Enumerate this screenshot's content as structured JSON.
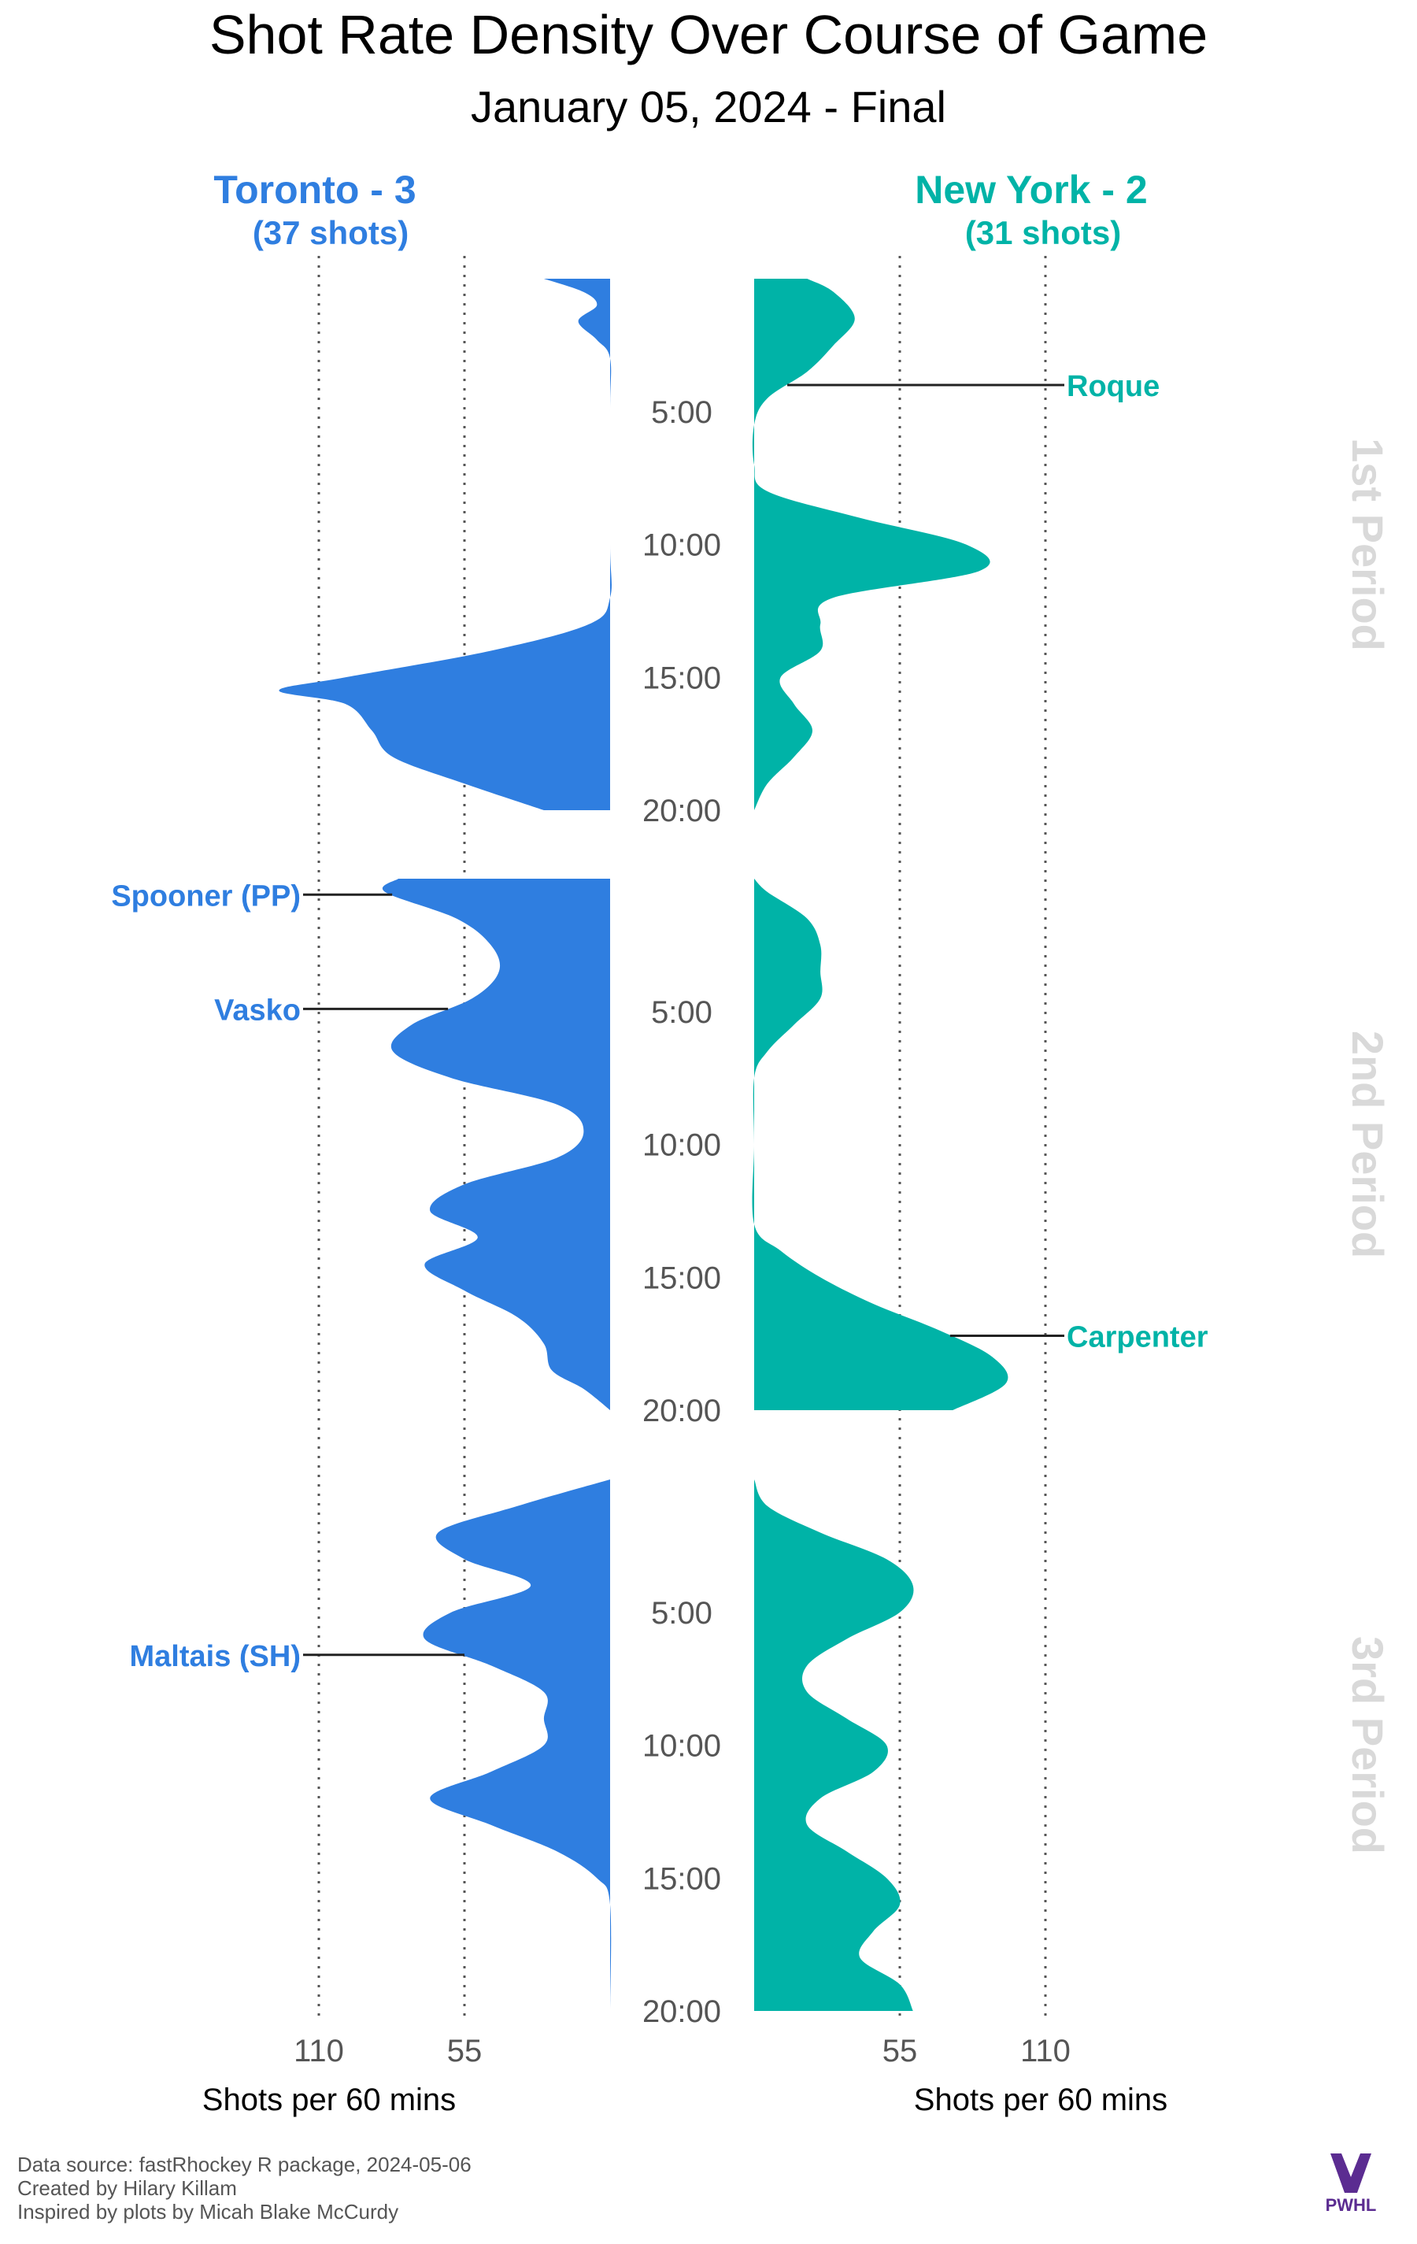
{
  "chart_data": {
    "type": "area",
    "title": "Shot Rate Density Over Course of Game",
    "subtitle": "January 05, 2024 - Final",
    "teams": [
      {
        "side": "left",
        "header": "Toronto - 3",
        "shots": "(37 shots)",
        "color": "#2f7ee0"
      },
      {
        "side": "right",
        "header": "New York - 2",
        "shots": "(31 shots)",
        "color": "#00b3a7"
      }
    ],
    "period_labels": [
      "1st Period",
      "2nd Period",
      "3rd Period"
    ],
    "time_ticks": [
      "5:00",
      "10:00",
      "15:00",
      "20:00"
    ],
    "time_tick_values": [
      5,
      10,
      15,
      20
    ],
    "x_ticks": {
      "left": [
        110,
        55
      ],
      "right": [
        55,
        110
      ]
    },
    "xlabel": "Shots per 60 mins",
    "xlim": [
      0,
      110
    ],
    "grid": "dotted at 55 and 110",
    "series": {
      "left": [
        [
          [
            0.0,
            25
          ],
          [
            0.5,
            10
          ],
          [
            1.0,
            5
          ],
          [
            1.6,
            12
          ],
          [
            2.3,
            5
          ],
          [
            3.0,
            0
          ],
          [
            5.0,
            0
          ],
          [
            10.0,
            0
          ],
          [
            12.0,
            0
          ],
          [
            13.0,
            8
          ],
          [
            14.0,
            45
          ],
          [
            15.0,
            100
          ],
          [
            15.5,
            125
          ],
          [
            16.0,
            100
          ],
          [
            17.0,
            90
          ],
          [
            18.0,
            82
          ],
          [
            19.0,
            55
          ],
          [
            20.0,
            25
          ]
        ],
        [
          [
            0.0,
            80
          ],
          [
            0.5,
            85
          ],
          [
            1.5,
            58
          ],
          [
            2.5,
            45
          ],
          [
            3.5,
            42
          ],
          [
            4.5,
            52
          ],
          [
            5.5,
            75
          ],
          [
            6.5,
            82
          ],
          [
            7.5,
            60
          ],
          [
            8.5,
            20
          ],
          [
            9.5,
            10
          ],
          [
            10.5,
            20
          ],
          [
            11.5,
            55
          ],
          [
            12.5,
            68
          ],
          [
            13.5,
            50
          ],
          [
            14.5,
            70
          ],
          [
            15.5,
            55
          ],
          [
            16.5,
            35
          ],
          [
            17.5,
            25
          ],
          [
            18.5,
            22
          ],
          [
            19.2,
            10
          ],
          [
            20.0,
            0
          ]
        ],
        [
          [
            0.0,
            0
          ],
          [
            1.0,
            35
          ],
          [
            2.0,
            65
          ],
          [
            3.0,
            55
          ],
          [
            4.0,
            30
          ],
          [
            5.0,
            60
          ],
          [
            6.0,
            70
          ],
          [
            7.0,
            45
          ],
          [
            8.0,
            25
          ],
          [
            9.0,
            25
          ],
          [
            10.0,
            25
          ],
          [
            11.0,
            45
          ],
          [
            12.0,
            68
          ],
          [
            13.0,
            45
          ],
          [
            14.0,
            20
          ],
          [
            15.0,
            5
          ],
          [
            16.0,
            0
          ],
          [
            20.0,
            0
          ]
        ]
      ],
      "right": [
        [
          [
            0.0,
            20
          ],
          [
            0.5,
            30
          ],
          [
            1.5,
            38
          ],
          [
            2.5,
            30
          ],
          [
            3.5,
            20
          ],
          [
            4.5,
            5
          ],
          [
            5.5,
            0
          ],
          [
            7.0,
            0
          ],
          [
            8.0,
            5
          ],
          [
            9.0,
            40
          ],
          [
            10.0,
            80
          ],
          [
            11.0,
            85
          ],
          [
            12.0,
            30
          ],
          [
            13.0,
            25
          ],
          [
            14.0,
            25
          ],
          [
            15.0,
            10
          ],
          [
            16.0,
            15
          ],
          [
            17.0,
            22
          ],
          [
            18.0,
            15
          ],
          [
            19.0,
            5
          ],
          [
            20.0,
            0
          ]
        ],
        [
          [
            0.0,
            0
          ],
          [
            0.5,
            5
          ],
          [
            1.5,
            20
          ],
          [
            2.5,
            25
          ],
          [
            3.5,
            25
          ],
          [
            4.5,
            25
          ],
          [
            5.5,
            15
          ],
          [
            6.5,
            5
          ],
          [
            7.5,
            0
          ],
          [
            10.0,
            0
          ],
          [
            13.0,
            0
          ],
          [
            14.0,
            10
          ],
          [
            15.0,
            25
          ],
          [
            16.0,
            45
          ],
          [
            17.0,
            70
          ],
          [
            18.0,
            90
          ],
          [
            19.0,
            95
          ],
          [
            20.0,
            75
          ]
        ],
        [
          [
            0.0,
            0
          ],
          [
            1.0,
            5
          ],
          [
            2.0,
            25
          ],
          [
            3.0,
            50
          ],
          [
            4.0,
            60
          ],
          [
            5.0,
            55
          ],
          [
            6.0,
            35
          ],
          [
            7.0,
            20
          ],
          [
            8.0,
            20
          ],
          [
            9.0,
            35
          ],
          [
            10.0,
            50
          ],
          [
            11.0,
            45
          ],
          [
            12.0,
            25
          ],
          [
            13.0,
            20
          ],
          [
            14.0,
            35
          ],
          [
            15.0,
            50
          ],
          [
            16.0,
            55
          ],
          [
            17.0,
            45
          ],
          [
            18.0,
            40
          ],
          [
            19.0,
            55
          ],
          [
            20.0,
            60
          ]
        ]
      ]
    },
    "annotations": [
      {
        "text": "Roque",
        "side": "right",
        "period": 0,
        "time": 4.0
      },
      {
        "text": "Spooner (PP)",
        "side": "left",
        "period": 1,
        "time": 0.6
      },
      {
        "text": "Vasko",
        "side": "left",
        "period": 1,
        "time": 4.9
      },
      {
        "text": "Carpenter",
        "side": "right",
        "period": 1,
        "time": 17.2
      },
      {
        "text": "Maltais (SH)",
        "side": "left",
        "period": 2,
        "time": 6.6
      }
    ]
  },
  "footer": {
    "lines": [
      "Data source: fastRhockey R package, 2024-05-06",
      "Created by Hilary Killam",
      "Inspired by plots by Micah Blake McCurdy"
    ],
    "logo_text": "PWHL"
  },
  "colors": {
    "grid": "#555555",
    "period_label": "#d9d9d9",
    "tick_text": "#555555"
  }
}
